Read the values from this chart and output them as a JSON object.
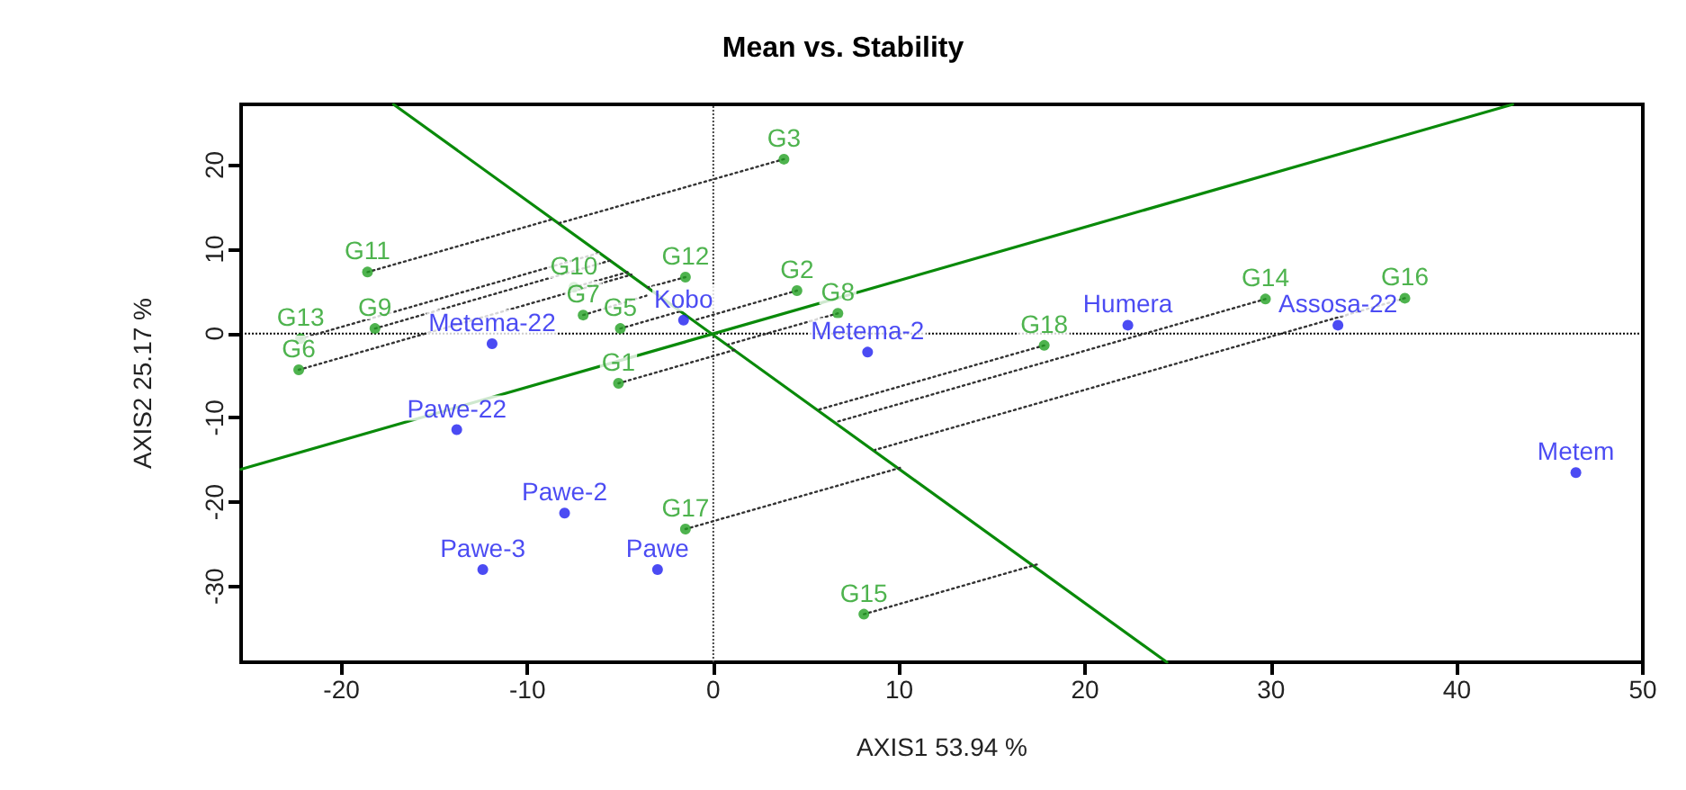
{
  "chart_data": {
    "type": "scatter",
    "title": "Mean vs. Stability",
    "xlabel": "AXIS1 53.94 %",
    "ylabel": "AXIS2 25.17 %",
    "xlim": [
      -25.4,
      50
    ],
    "ylim": [
      -39,
      27.2
    ],
    "xticks": [
      -20,
      -10,
      0,
      10,
      20,
      30,
      40,
      50
    ],
    "yticks": [
      -30,
      -20,
      -10,
      0,
      10,
      20
    ],
    "grid": false,
    "marker": "circle",
    "ref_lines": [
      {
        "axis": "x",
        "value": 0,
        "color": "#444444",
        "line_style": "dotted"
      },
      {
        "axis": "y",
        "value": 0,
        "color": "#000000",
        "line_style": "dotted"
      }
    ],
    "series": [
      {
        "type": "line",
        "marker": "none",
        "color": "#0a8a0a",
        "line_style": "solid",
        "x": [
          -25.4,
          43.0
        ],
        "values": [
          -16.1,
          27.2
        ]
      },
      {
        "type": "line",
        "marker": "none",
        "color": "#0a8a0a",
        "line_style": "solid",
        "x": [
          -17.2,
          24.4
        ],
        "values": [
          27.2,
          -39
        ]
      },
      {
        "type": "line",
        "marker": "none",
        "color": "#333333",
        "line_style": "dotted",
        "x": [
          3.8,
          -8.3
        ],
        "values": [
          20.7,
          13.1
        ]
      },
      {
        "type": "line",
        "marker": "none",
        "color": "#333333",
        "line_style": "dotted",
        "x": [
          -18.6,
          -8.6
        ],
        "values": [
          7.3,
          13.6
        ]
      },
      {
        "type": "line",
        "marker": "none",
        "color": "#333333",
        "line_style": "dotted",
        "x": [
          -7.5,
          -4.6
        ],
        "values": [
          5.5,
          7.3
        ]
      },
      {
        "type": "line",
        "marker": "none",
        "color": "#333333",
        "line_style": "dotted",
        "x": [
          -1.5,
          -3.5
        ],
        "values": [
          6.7,
          5.5
        ]
      },
      {
        "type": "line",
        "marker": "none",
        "color": "#333333",
        "line_style": "dotted",
        "x": [
          4.5,
          -1.0
        ],
        "values": [
          5.1,
          1.6
        ]
      },
      {
        "type": "line",
        "marker": "none",
        "color": "#333333",
        "line_style": "dotted",
        "x": [
          6.7,
          0.8
        ],
        "values": [
          2.4,
          -1.3
        ]
      },
      {
        "type": "line",
        "marker": "none",
        "color": "#333333",
        "line_style": "dotted",
        "x": [
          -5,
          -1.7
        ],
        "values": [
          0.6,
          2.7
        ]
      },
      {
        "type": "line",
        "marker": "none",
        "color": "#333333",
        "line_style": "dotted",
        "x": [
          -7,
          -3.6
        ],
        "values": [
          2.2,
          4.5
        ]
      },
      {
        "type": "line",
        "marker": "none",
        "color": "#333333",
        "line_style": "dotted",
        "x": [
          -22.2,
          -6.1
        ],
        "values": [
          -0.6,
          9.6
        ]
      },
      {
        "type": "line",
        "marker": "none",
        "color": "#333333",
        "line_style": "dotted",
        "x": [
          -18.2,
          -5.5
        ],
        "values": [
          0.6,
          8.7
        ]
      },
      {
        "type": "line",
        "marker": "none",
        "color": "#333333",
        "line_style": "dotted",
        "x": [
          -22.3,
          -4.4
        ],
        "values": [
          -4.3,
          7.0
        ]
      },
      {
        "type": "line",
        "marker": "none",
        "color": "#333333",
        "line_style": "dotted",
        "x": [
          -5.1,
          1.2
        ],
        "values": [
          -5.9,
          -1.9
        ]
      },
      {
        "type": "line",
        "marker": "none",
        "color": "#333333",
        "line_style": "dotted",
        "x": [
          17.8,
          5.7
        ],
        "values": [
          -1.4,
          -9.0
        ]
      },
      {
        "type": "line",
        "marker": "none",
        "color": "#333333",
        "line_style": "dotted",
        "x": [
          29.7,
          6.6
        ],
        "values": [
          4.1,
          -10.5
        ]
      },
      {
        "type": "line",
        "marker": "none",
        "color": "#333333",
        "line_style": "dotted",
        "x": [
          37.2,
          8.7
        ],
        "values": [
          4.2,
          -13.8
        ]
      },
      {
        "type": "line",
        "marker": "none",
        "color": "#333333",
        "line_style": "dotted",
        "x": [
          -1.5,
          10.1
        ],
        "values": [
          -23.2,
          -15.9
        ]
      },
      {
        "type": "line",
        "marker": "none",
        "color": "#333333",
        "line_style": "dotted",
        "x": [
          8.1,
          17.4
        ],
        "values": [
          -33.3,
          -27.4
        ]
      },
      {
        "type": "scatter",
        "color": "#22a022",
        "x": [
          3.8,
          -18.6,
          -7.5,
          -1.5,
          4.5,
          6.7,
          -5,
          -7,
          -22.2,
          -18.2,
          -22.3,
          -5.1,
          17.8,
          29.7,
          37.2,
          -1.5,
          8.1
        ],
        "values": [
          20.7,
          7.3,
          5.5,
          6.7,
          5.1,
          2.4,
          0.6,
          2.2,
          -0.6,
          0.6,
          -4.3,
          -5.9,
          -1.4,
          4.1,
          4.2,
          -23.2,
          -33.3
        ],
        "value_labels": [
          "G3",
          "G11",
          "G10",
          "G12",
          "G2",
          "G8",
          "G5",
          "G7",
          "G13",
          "G9",
          "G6",
          "G1",
          "G18",
          "G14",
          "G16",
          "G17",
          "G15"
        ]
      },
      {
        "type": "scatter",
        "color": "#1e1ef0",
        "x": [
          -11.9,
          -1.6,
          8.3,
          22.3,
          33.6,
          -13.8,
          -8.0,
          -12.4,
          -3.0,
          46.4
        ],
        "values": [
          -1.2,
          1.6,
          -2.2,
          1.0,
          1.0,
          -11.4,
          -21.3,
          -28.0,
          -28.0,
          -16.5
        ],
        "value_labels": [
          "Metema-22",
          "Kobo",
          "Metema-2",
          "Humera",
          "Assosa-22",
          "Pawe-22",
          "Pawe-2",
          "Pawe-3",
          "Pawe",
          "Metem"
        ]
      }
    ]
  }
}
